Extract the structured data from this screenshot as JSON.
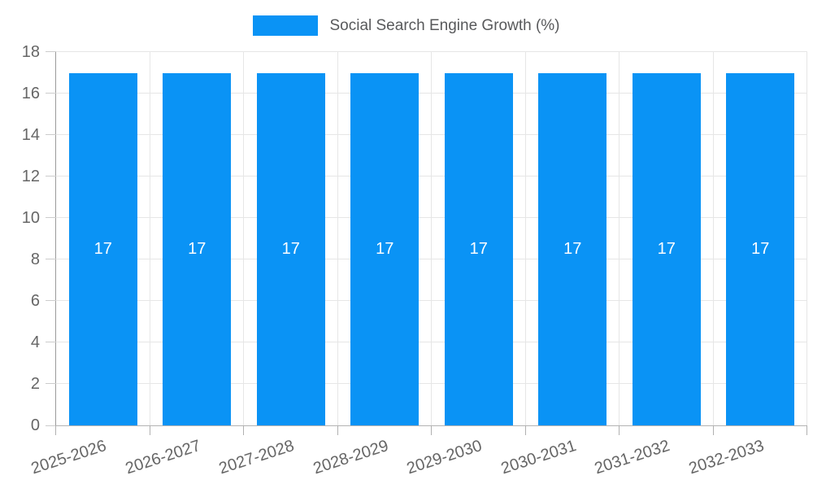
{
  "chart_data": {
    "type": "bar",
    "title": "Social Search Engine Growth (%)",
    "categories": [
      "2025-2026",
      "2026-2027",
      "2027-2028",
      "2028-2029",
      "2029-2030",
      "2030-2031",
      "2031-2032",
      "2032-2033"
    ],
    "series": [
      {
        "name": "Social Search Engine Growth (%)",
        "values": [
          17,
          17,
          17,
          17,
          17,
          17,
          17,
          17
        ]
      }
    ],
    "value_labels": [
      "17",
      "17",
      "17",
      "17",
      "17",
      "17",
      "17",
      "17"
    ],
    "xlabel": "",
    "ylabel": "",
    "ylim": [
      0,
      18
    ],
    "ytick_step": 2,
    "ytick_labels": [
      "0",
      "2",
      "4",
      "6",
      "8",
      "10",
      "12",
      "14",
      "16",
      "18"
    ],
    "grid": true,
    "legend_position": "top-center"
  },
  "colors": {
    "bar": "#0a93f5",
    "bar_label_text": "#ffffff",
    "axis_text": "#666666",
    "legend_text": "#58595b",
    "gridline": "#e6e6e6",
    "axis_line": "#9a9a9a",
    "baseline": "#b3b3b3"
  }
}
